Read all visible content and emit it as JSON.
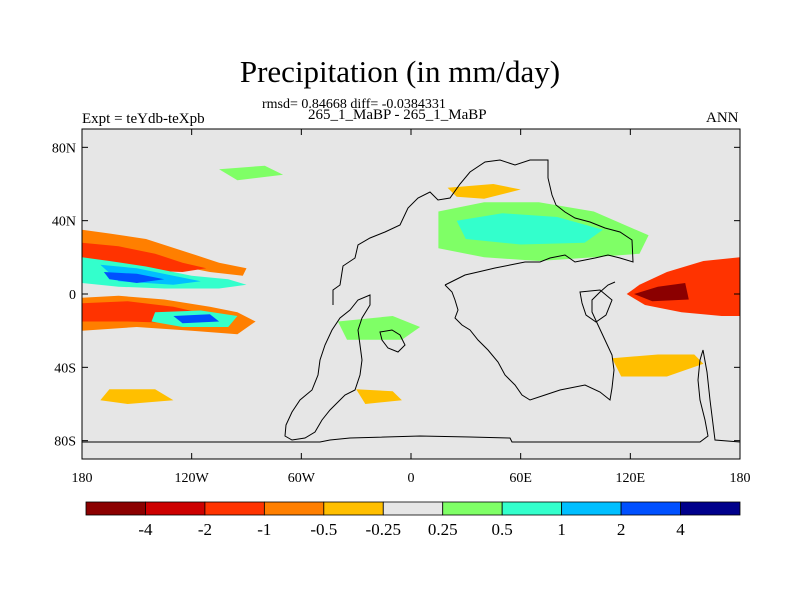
{
  "title": "Precipitation (in mm/day)",
  "stats_line": "rmsd= 0.84668 diff= -0.0384331",
  "subtitle": "265_1_MaBP - 265_1_MaBP",
  "experiment": "Expt = teYdb-teXpb",
  "season": "ANN",
  "background_color": "#e6e6e6",
  "lat_ticks": [
    {
      "label": "80N",
      "value": 80
    },
    {
      "label": "40N",
      "value": 40
    },
    {
      "label": "0",
      "value": 0
    },
    {
      "label": "40S",
      "value": -40
    },
    {
      "label": "80S",
      "value": -80
    }
  ],
  "lon_ticks": [
    {
      "label": "180",
      "value": -180
    },
    {
      "label": "120W",
      "value": -120
    },
    {
      "label": "60W",
      "value": -60
    },
    {
      "label": "0",
      "value": 0
    },
    {
      "label": "60E",
      "value": 60
    },
    {
      "label": "120E",
      "value": 120
    },
    {
      "label": "180",
      "value": 180
    }
  ],
  "colorbar": {
    "colors": [
      "#8b0000",
      "#cd0000",
      "#ff3300",
      "#ff7f00",
      "#ffbf00",
      "#e6e6e6",
      "#7fff66",
      "#33ffcc",
      "#00bfff",
      "#0050ff",
      "#00008b"
    ],
    "labels": [
      "-4",
      "-2",
      "-1",
      "-0.5",
      "-0.25",
      "0.25",
      "0.5",
      "1",
      "2",
      "4"
    ]
  },
  "fields": [
    {
      "name": "north-pacific-dry-band",
      "color": "#ff7f00",
      "pts": [
        [
          -180,
          35
        ],
        [
          -165,
          33
        ],
        [
          -145,
          30
        ],
        [
          -120,
          22
        ],
        [
          -105,
          17
        ],
        [
          -90,
          14
        ],
        [
          -92,
          10
        ],
        [
          -110,
          12
        ],
        [
          -130,
          16
        ],
        [
          -155,
          20
        ],
        [
          -180,
          22
        ]
      ]
    },
    {
      "name": "north-pacific-dry-core",
      "color": "#ff3300",
      "pts": [
        [
          -180,
          28
        ],
        [
          -160,
          26
        ],
        [
          -140,
          22
        ],
        [
          -125,
          17
        ],
        [
          -112,
          14
        ],
        [
          -125,
          12
        ],
        [
          -150,
          13
        ],
        [
          -180,
          15
        ]
      ]
    },
    {
      "name": "equatorial-pacific-dry",
      "color": "#ff7f00",
      "pts": [
        [
          -180,
          -2
        ],
        [
          -160,
          -1
        ],
        [
          -135,
          -3
        ],
        [
          -110,
          -7
        ],
        [
          -95,
          -10
        ],
        [
          -85,
          -15
        ],
        [
          -95,
          -22
        ],
        [
          -120,
          -20
        ],
        [
          -150,
          -18
        ],
        [
          -180,
          -20
        ]
      ]
    },
    {
      "name": "equatorial-pacific-dry-core",
      "color": "#ff3300",
      "pts": [
        [
          -180,
          -5
        ],
        [
          -155,
          -4
        ],
        [
          -130,
          -7
        ],
        [
          -112,
          -11
        ],
        [
          -125,
          -16
        ],
        [
          -155,
          -15
        ],
        [
          -180,
          -15
        ]
      ]
    },
    {
      "name": "pacific-wet-band",
      "color": "#33ffcc",
      "pts": [
        [
          -180,
          20
        ],
        [
          -165,
          18
        ],
        [
          -145,
          15
        ],
        [
          -120,
          10
        ],
        [
          -100,
          8
        ],
        [
          -90,
          5
        ],
        [
          -105,
          3
        ],
        [
          -135,
          3
        ],
        [
          -160,
          4
        ],
        [
          -180,
          6
        ]
      ]
    },
    {
      "name": "pacific-wet-core",
      "color": "#00bfff",
      "pts": [
        [
          -170,
          16
        ],
        [
          -150,
          14
        ],
        [
          -130,
          10
        ],
        [
          -115,
          7
        ],
        [
          -130,
          5
        ],
        [
          -160,
          7
        ]
      ]
    },
    {
      "name": "pacific-wet-max",
      "color": "#0050ff",
      "pts": [
        [
          -168,
          12
        ],
        [
          -150,
          11
        ],
        [
          -135,
          8
        ],
        [
          -150,
          6
        ],
        [
          -165,
          8
        ]
      ]
    },
    {
      "name": "south-pacific-wet",
      "color": "#33ffcc",
      "pts": [
        [
          -140,
          -10
        ],
        [
          -115,
          -9
        ],
        [
          -95,
          -12
        ],
        [
          -100,
          -18
        ],
        [
          -125,
          -18
        ],
        [
          -142,
          -15
        ]
      ]
    },
    {
      "name": "south-pacific-wet-core",
      "color": "#0050ff",
      "pts": [
        [
          -130,
          -12
        ],
        [
          -110,
          -11
        ],
        [
          -105,
          -15
        ],
        [
          -125,
          -16
        ]
      ]
    },
    {
      "name": "western-pacific-dry",
      "color": "#ff3300",
      "pts": [
        [
          180,
          20
        ],
        [
          160,
          18
        ],
        [
          140,
          12
        ],
        [
          125,
          5
        ],
        [
          118,
          0
        ],
        [
          128,
          -6
        ],
        [
          148,
          -10
        ],
        [
          170,
          -12
        ],
        [
          180,
          -12
        ]
      ]
    },
    {
      "name": "western-pacific-dry-core",
      "color": "#8b0000",
      "pts": [
        [
          150,
          6
        ],
        [
          135,
          4
        ],
        [
          122,
          0
        ],
        [
          132,
          -4
        ],
        [
          152,
          -3
        ]
      ]
    },
    {
      "name": "indian-ocean-dry",
      "color": "#ffbf00",
      "pts": [
        [
          110,
          -35
        ],
        [
          135,
          -33
        ],
        [
          155,
          -33
        ],
        [
          160,
          -38
        ],
        [
          140,
          -45
        ],
        [
          115,
          -45
        ]
      ]
    },
    {
      "name": "eurasia-wet",
      "color": "#7fff66",
      "pts": [
        [
          15,
          45
        ],
        [
          40,
          50
        ],
        [
          70,
          50
        ],
        [
          100,
          45
        ],
        [
          130,
          32
        ],
        [
          125,
          22
        ],
        [
          100,
          20
        ],
        [
          70,
          18
        ],
        [
          40,
          20
        ],
        [
          15,
          25
        ]
      ]
    },
    {
      "name": "eurasia-wet-core",
      "color": "#33ffcc",
      "pts": [
        [
          25,
          40
        ],
        [
          50,
          44
        ],
        [
          80,
          42
        ],
        [
          105,
          35
        ],
        [
          95,
          28
        ],
        [
          60,
          27
        ],
        [
          30,
          30
        ]
      ]
    },
    {
      "name": "arctic-wet-patch",
      "color": "#7fff66",
      "pts": [
        [
          -105,
          68
        ],
        [
          -80,
          70
        ],
        [
          -70,
          65
        ],
        [
          -95,
          62
        ]
      ]
    },
    {
      "name": "north-atlantic-dry",
      "color": "#ffbf00",
      "pts": [
        [
          20,
          58
        ],
        [
          45,
          60
        ],
        [
          60,
          57
        ],
        [
          40,
          52
        ],
        [
          25,
          53
        ]
      ]
    },
    {
      "name": "southern-ocean-dry",
      "color": "#ffbf00",
      "pts": [
        [
          -165,
          -52
        ],
        [
          -140,
          -52
        ],
        [
          -130,
          -58
        ],
        [
          -155,
          -60
        ],
        [
          -170,
          -58
        ]
      ]
    },
    {
      "name": "south-atlantic-dry",
      "color": "#ffbf00",
      "pts": [
        [
          -30,
          -52
        ],
        [
          -10,
          -53
        ],
        [
          -5,
          -58
        ],
        [
          -25,
          -60
        ]
      ]
    },
    {
      "name": "atlantic-wet",
      "color": "#7fff66",
      "pts": [
        [
          -40,
          -15
        ],
        [
          -10,
          -12
        ],
        [
          5,
          -18
        ],
        [
          -5,
          -25
        ],
        [
          -35,
          -25
        ]
      ]
    }
  ]
}
